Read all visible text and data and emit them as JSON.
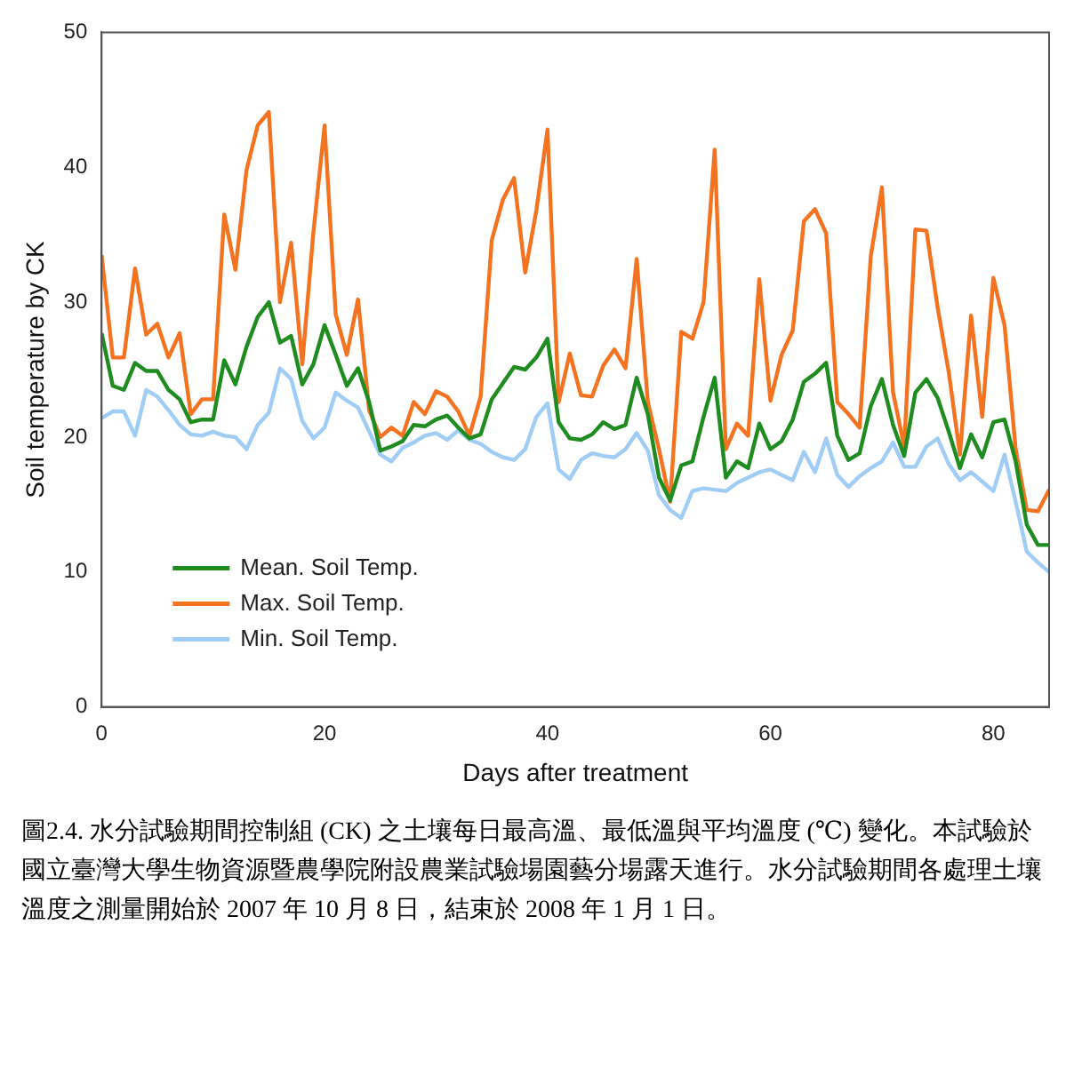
{
  "chart_data": {
    "type": "line",
    "xlabel": "Days after treatment",
    "ylabel": "Soil temperature by CK",
    "x": [
      0,
      1,
      2,
      3,
      4,
      5,
      6,
      7,
      8,
      9,
      10,
      11,
      12,
      13,
      14,
      15,
      16,
      17,
      18,
      19,
      20,
      21,
      22,
      23,
      24,
      25,
      26,
      27,
      28,
      29,
      30,
      31,
      32,
      33,
      34,
      35,
      36,
      37,
      38,
      39,
      40,
      41,
      42,
      43,
      44,
      45,
      46,
      47,
      48,
      49,
      50,
      51,
      52,
      53,
      54,
      55,
      56,
      57,
      58,
      59,
      60,
      61,
      62,
      63,
      64,
      65,
      66,
      67,
      68,
      69,
      70,
      71,
      72,
      73,
      74,
      75,
      76,
      77,
      78,
      79,
      80,
      81,
      82,
      83,
      84,
      85
    ],
    "series": [
      {
        "name": "Mean. Soil Temp.",
        "color": "#1e8c1e",
        "values": [
          27.7,
          23.8,
          23.5,
          25.5,
          24.9,
          24.9,
          23.5,
          22.8,
          21.1,
          21.3,
          21.3,
          25.7,
          23.9,
          26.7,
          28.9,
          30,
          27,
          27.5,
          23.9,
          25.4,
          28.3,
          26.1,
          23.8,
          25.1,
          22.6,
          19,
          19.3,
          19.7,
          20.9,
          20.8,
          21.3,
          21.6,
          20.7,
          19.9,
          20.2,
          22.8,
          24,
          25.2,
          25,
          25.9,
          27.3,
          21.1,
          19.9,
          19.8,
          20.2,
          21.1,
          20.6,
          20.9,
          24.4,
          21.7,
          17,
          15.3,
          17.9,
          18.2,
          21.5,
          24.4,
          17,
          18.2,
          17.7,
          21,
          19.1,
          19.7,
          21.3,
          24.1,
          24.7,
          25.5,
          20.1,
          18.3,
          18.8,
          22.3,
          24.3,
          20.9,
          18.6,
          23.3,
          24.3,
          22.9,
          20.4,
          17.7,
          20.2,
          18.5,
          21.1,
          21.3,
          18.2,
          13.5,
          12,
          12
        ]
      },
      {
        "name": "Max. Soil Temp.",
        "color": "#f47320",
        "values": [
          33.5,
          25.9,
          25.9,
          32.5,
          27.6,
          28.4,
          25.9,
          27.7,
          21.7,
          22.8,
          22.8,
          36.5,
          32.4,
          39.8,
          43.1,
          44.1,
          30,
          34.4,
          25.4,
          35.2,
          43.1,
          29.1,
          26.1,
          30.2,
          22,
          20,
          20.7,
          20.1,
          22.6,
          21.7,
          23.4,
          23,
          21.9,
          20.1,
          23,
          34.6,
          37.6,
          39.2,
          32.2,
          36.8,
          42.8,
          22.6,
          26.2,
          23.1,
          23,
          25.3,
          26.5,
          25.1,
          33.2,
          22.6,
          19.1,
          15.2,
          27.8,
          27.3,
          30,
          41.3,
          19.1,
          21,
          20.1,
          31.7,
          22.7,
          26.1,
          27.9,
          36,
          36.9,
          35.1,
          22.6,
          21.7,
          20.7,
          33.4,
          38.5,
          23.3,
          19.3,
          35.4,
          35.3,
          29.6,
          24.8,
          18.7,
          29,
          21.5,
          31.8,
          28.3,
          19.1,
          14.6,
          14.5,
          16.1
        ]
      },
      {
        "name": "Min. Soil Temp.",
        "color": "#9fcdf5",
        "values": [
          21.4,
          21.9,
          21.9,
          20.1,
          23.5,
          23,
          22,
          20.9,
          20.2,
          20.1,
          20.4,
          20.1,
          20,
          19.1,
          20.9,
          21.8,
          25.1,
          24.3,
          21.2,
          19.9,
          20.7,
          23.3,
          22.7,
          22.2,
          20.4,
          18.7,
          18.2,
          19.2,
          19.6,
          20.1,
          20.3,
          19.8,
          20.5,
          19.8,
          19.5,
          18.9,
          18.5,
          18.3,
          19.1,
          21.5,
          22.5,
          17.6,
          16.9,
          18.3,
          18.8,
          18.6,
          18.5,
          19.1,
          20.3,
          19,
          15.7,
          14.6,
          14,
          16,
          16.2,
          16.1,
          16,
          16.6,
          17,
          17.4,
          17.6,
          17.2,
          16.8,
          18.9,
          17.4,
          19.9,
          17.2,
          16.3,
          17.1,
          17.7,
          18.2,
          19.6,
          17.8,
          17.8,
          19.3,
          19.9,
          18,
          16.8,
          17.4,
          16.7,
          16,
          18.7,
          15.2,
          11.5,
          10.7,
          10
        ]
      }
    ],
    "xlim": [
      0,
      85
    ],
    "xticks": [
      0,
      20,
      40,
      60,
      80
    ],
    "ylim": [
      0,
      50
    ],
    "yticks": [
      0,
      10,
      20,
      30,
      40,
      50
    ],
    "grid": false,
    "legend": "bottom left",
    "marker": "none",
    "line_style": "solid",
    "annotations": [
      "圖2.4. 水分試驗期間控制組 (CK) 之土壤每日最高溫、最低溫與平均溫度 (℃) 變化。本試驗於國立臺灣大學生物資源暨農學院附設農業試驗場園藝分場露天進行。水分試驗期間各處理土壤溫度之測量開始於 2007 年 10 月 8 日，結束於 2008 年 1 月 1 日。"
    ]
  }
}
